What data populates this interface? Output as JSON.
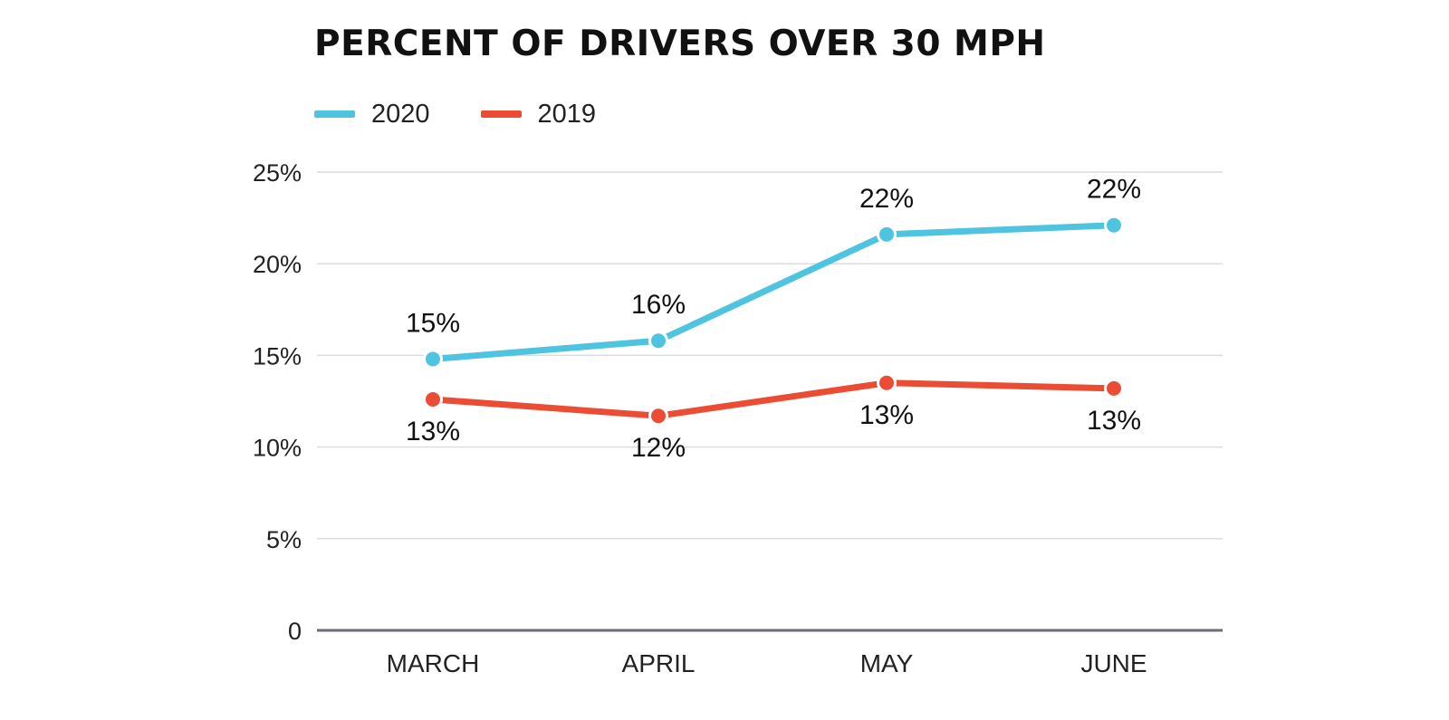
{
  "chart_data": {
    "type": "line",
    "title": "PERCENT OF DRIVERS OVER 30 MPH",
    "categories": [
      "MARCH",
      "APRIL",
      "MAY",
      "JUNE"
    ],
    "ylim": [
      0,
      25
    ],
    "yticks": [
      0,
      5,
      10,
      15,
      20,
      25
    ],
    "ytick_labels": [
      "0",
      "5%",
      "10%",
      "15%",
      "20%",
      "25%"
    ],
    "grid": true,
    "legend_position": "top-left",
    "series": [
      {
        "name": "2020",
        "color": "#4EC4E0",
        "values": [
          14.8,
          15.8,
          21.6,
          22.1
        ],
        "labels": [
          "15%",
          "16%",
          "22%",
          "22%"
        ],
        "label_position": "above"
      },
      {
        "name": "2019",
        "color": "#EA4D33",
        "values": [
          12.6,
          11.7,
          13.5,
          13.2
        ],
        "labels": [
          "13%",
          "12%",
          "13%",
          "13%"
        ],
        "label_position": "below"
      }
    ]
  }
}
